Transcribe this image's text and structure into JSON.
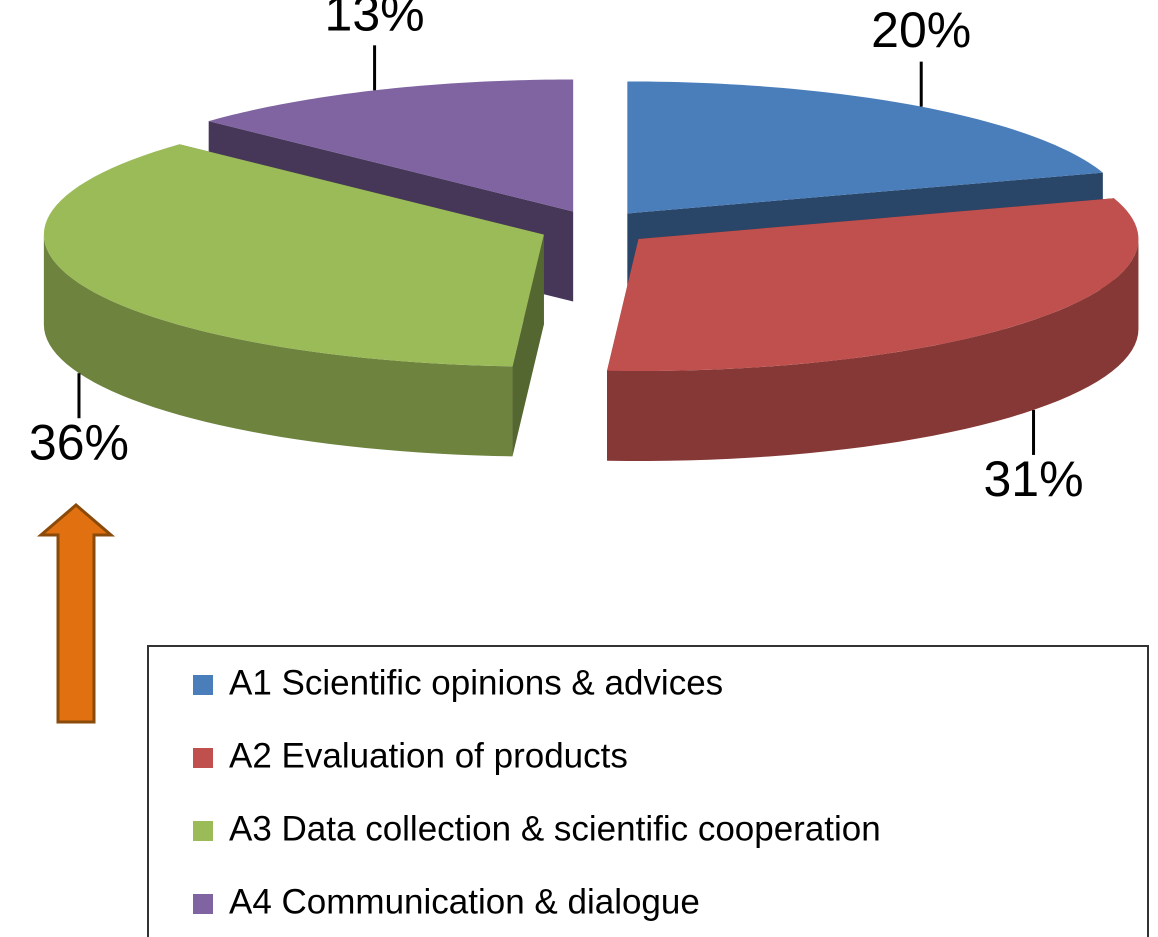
{
  "chart_data": {
    "type": "pie",
    "categories": [
      "A1 Scientific opinions & advices",
      "A2 Evaluation of products",
      "A3 Data collection & scientific cooperation",
      "A4 Communication & dialogue"
    ],
    "values": [
      20,
      31,
      36,
      13
    ],
    "value_labels": [
      "20%",
      "31%",
      "36%",
      "13%"
    ],
    "colors": [
      "#4a7ebb",
      "#c0504d",
      "#9bbb59",
      "#8064a2"
    ],
    "legend": "bottom"
  }
}
